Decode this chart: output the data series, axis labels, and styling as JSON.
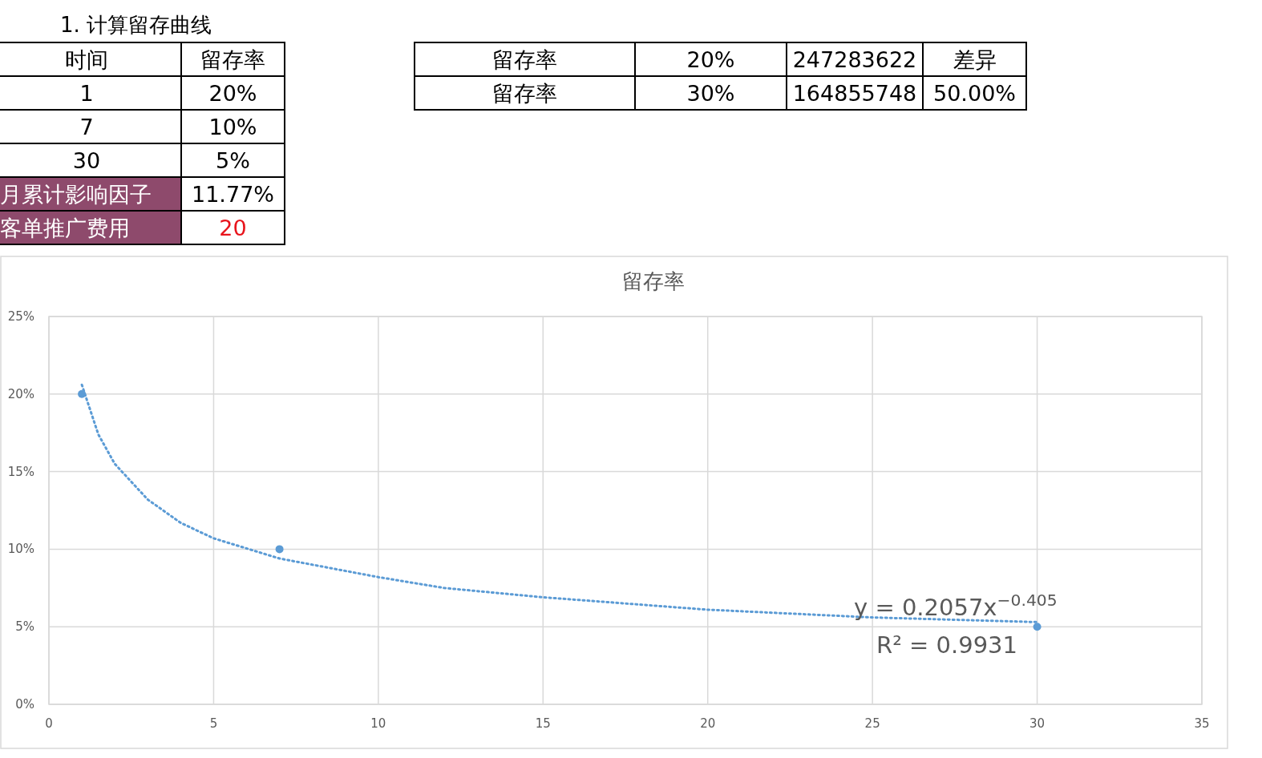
{
  "chart_data": [
    {
      "type": "other",
      "title": "1. 计算留存曲线",
      "annotations": [
        "时间",
        "留存率",
        "1",
        "20%",
        "7",
        "10%",
        "30",
        "5%",
        "月累计影响因子",
        "11.77%",
        "客单推广费用",
        "20",
        "留存率",
        "20%",
        "247283622",
        "差异",
        "留存率",
        "30%",
        "164855748",
        "50.00%"
      ]
    },
    {
      "type": "scatter",
      "title": "留存率",
      "xlim": [
        0,
        35
      ],
      "xticks": [
        0,
        5,
        10,
        15,
        20,
        25,
        30,
        35
      ],
      "ylim": [
        0,
        25
      ],
      "yticks": [
        {
          "value": 0,
          "label": "0%"
        },
        {
          "value": 5,
          "label": "5%"
        },
        {
          "value": 10,
          "label": "10%"
        },
        {
          "value": 15,
          "label": "15%"
        },
        {
          "value": 20,
          "label": "20%"
        },
        {
          "value": 25,
          "label": "25%"
        }
      ],
      "grid": true,
      "series": [
        {
          "type": "line",
          "color": "#5b9bd5",
          "line_style": "dotted",
          "marker": "none",
          "x": [
            1,
            1.5,
            2,
            3,
            4,
            5,
            7,
            10,
            12,
            15,
            20,
            25,
            30
          ],
          "values": [
            20.6,
            17.4,
            15.5,
            13.2,
            11.7,
            10.7,
            9.4,
            8.2,
            7.5,
            6.9,
            6.1,
            5.6,
            5.3
          ]
        },
        {
          "type": "scatter",
          "color": "#5b9bd5",
          "marker": "circle",
          "x": [
            1,
            7,
            30
          ],
          "values": [
            20,
            10,
            5
          ]
        }
      ],
      "annotations": [
        "y = 0.2057x$^{−0.405}$",
        "R² = 0.9931"
      ]
    }
  ]
}
